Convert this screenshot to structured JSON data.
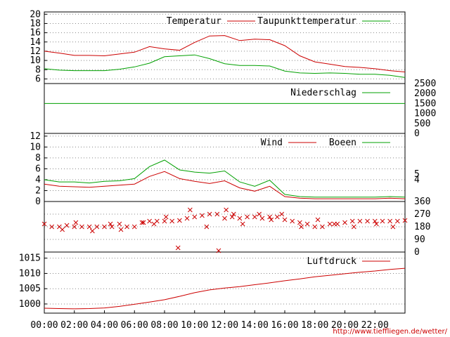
{
  "source_url": "http://www.tiefflie­gen.de/wetter/",
  "colors": {
    "red": "#cc0000",
    "green": "#00a000",
    "grid": "#888888",
    "axis": "#000000"
  },
  "chart_data": [
    {
      "type": "line",
      "id": "temp",
      "xlim": [
        0,
        24
      ],
      "ylim": [
        5,
        20.5
      ],
      "yticks": [
        6,
        8,
        10,
        12,
        14,
        16,
        18,
        20
      ],
      "xticks_labels": [
        "00:00",
        "02:00",
        "04:00",
        "06:00",
        "08:00",
        "10:00",
        "12:00",
        "14:00",
        "16:00",
        "18:00",
        "20:00",
        "22:00"
      ],
      "series": [
        {
          "name": "Temperatur",
          "color": "#cc0000",
          "x": [
            0,
            1,
            2,
            3,
            4,
            5,
            6,
            7,
            8,
            9,
            10,
            11,
            12,
            13,
            14,
            15,
            16,
            17,
            18,
            19,
            20,
            21,
            22,
            23,
            24
          ],
          "values": [
            12,
            11.6,
            11.1,
            11.1,
            11,
            11.4,
            11.8,
            13,
            12.5,
            12.2,
            13.9,
            15.3,
            15.4,
            14.3,
            14.6,
            14.5,
            13.2,
            11,
            9.7,
            9.2,
            8.7,
            8.5,
            8.2,
            7.8,
            7.5
          ]
        },
        {
          "name": "Taupunkttemperatur",
          "color": "#00a000",
          "x": [
            0,
            1,
            2,
            3,
            4,
            5,
            6,
            7,
            8,
            9,
            10,
            11,
            12,
            13,
            14,
            15,
            16,
            17,
            18,
            19,
            20,
            21,
            22,
            23,
            24
          ],
          "values": [
            8.2,
            7.9,
            7.8,
            7.8,
            7.8,
            8.1,
            8.6,
            9.4,
            10.8,
            11,
            11.2,
            10.4,
            9.3,
            8.9,
            8.9,
            8.8,
            7.7,
            7.3,
            7.2,
            7.3,
            7.2,
            7,
            7,
            6.8,
            6.3
          ]
        }
      ]
    },
    {
      "type": "line",
      "id": "rain",
      "xlim": [
        0,
        24
      ],
      "ylim": [
        0,
        2500
      ],
      "yticks": [
        0,
        500,
        1000,
        1500,
        2000,
        2500
      ],
      "series": [
        {
          "name": "Niederschlag",
          "color": "#00a000",
          "x": [
            0,
            24
          ],
          "values": [
            1500,
            1500
          ]
        }
      ]
    },
    {
      "type": "line",
      "id": "wind",
      "xlim": [
        0,
        24
      ],
      "ylim": [
        0,
        12.5
      ],
      "yticks": [
        0,
        2,
        4,
        6,
        8,
        10,
        12
      ],
      "y2ticks": [
        4,
        5
      ],
      "series": [
        {
          "name": "Wind",
          "color": "#cc0000",
          "x": [
            0,
            1,
            2,
            3,
            4,
            5,
            6,
            7,
            8,
            9,
            10,
            11,
            12,
            13,
            14,
            15,
            16,
            17,
            18,
            19,
            20,
            21,
            22,
            23,
            24
          ],
          "values": [
            3.2,
            2.8,
            2.7,
            2.6,
            2.8,
            3,
            3.2,
            4.6,
            5.5,
            4.2,
            3.7,
            3.3,
            3.8,
            2.5,
            1.9,
            2.8,
            0.9,
            0.6,
            0.5,
            0.5,
            0.5,
            0.5,
            0.5,
            0.6,
            0.5
          ]
        },
        {
          "name": "Boeen",
          "color": "#00a000",
          "x": [
            0,
            1,
            2,
            3,
            4,
            5,
            6,
            7,
            8,
            9,
            10,
            11,
            12,
            13,
            14,
            15,
            16,
            17,
            18,
            19,
            20,
            21,
            22,
            23,
            24
          ],
          "values": [
            4,
            3.6,
            3.6,
            3.4,
            3.7,
            3.8,
            4.2,
            6.4,
            7.6,
            5.8,
            5.4,
            5.2,
            5.6,
            3.6,
            2.8,
            3.9,
            1.3,
            0.9,
            0.8,
            0.8,
            0.8,
            0.8,
            0.8,
            0.9,
            0.8
          ]
        }
      ]
    },
    {
      "type": "scatter",
      "id": "winddir",
      "xlim": [
        0,
        24
      ],
      "ylim": [
        0,
        360
      ],
      "yticks": [
        0,
        90,
        180,
        270,
        360
      ],
      "series": [
        {
          "name": "",
          "color": "#cc0000",
          "x": [
            0,
            0.5,
            1,
            1.5,
            2,
            2.5,
            3,
            3.5,
            4,
            4.5,
            5,
            5.5,
            6,
            6.5,
            7,
            7.5,
            8,
            8.5,
            9,
            9.5,
            10,
            10.5,
            11,
            11.5,
            12,
            12.5,
            13,
            13.5,
            14,
            14.5,
            15,
            15.5,
            16,
            16.5,
            17,
            17.5,
            18,
            18.5,
            19,
            19.5,
            20,
            20.5,
            21,
            21.5,
            22,
            22.5,
            23,
            23.5,
            24
          ],
          "values": [
            200,
            180,
            180,
            190,
            180,
            180,
            180,
            180,
            180,
            180,
            200,
            180,
            180,
            210,
            220,
            220,
            220,
            220,
            225,
            240,
            250,
            260,
            270,
            270,
            240,
            250,
            240,
            250,
            250,
            240,
            250,
            250,
            230,
            220,
            210,
            200,
            180,
            180,
            200,
            200,
            210,
            220,
            220,
            220,
            220,
            220,
            220,
            220,
            225
          ]
        },
        {
          "name": "",
          "color": "#cc0000",
          "x": [
            1.2,
            2.1,
            3.2,
            4.4,
            5.1,
            6.6,
            7.3,
            8.1,
            8.9,
            9.7,
            10.8,
            11.6,
            12.1,
            12.6,
            13.2,
            14.3,
            15.1,
            15.8,
            17.1,
            18.2,
            19.3,
            20.6,
            22.1,
            23.2
          ],
          "values": [
            160,
            210,
            150,
            200,
            160,
            210,
            200,
            250,
            30,
            300,
            180,
            10,
            300,
            270,
            200,
            270,
            230,
            270,
            180,
            230,
            200,
            180,
            200,
            180
          ]
        }
      ]
    },
    {
      "type": "line",
      "id": "pressure",
      "xlim": [
        0,
        24
      ],
      "ylim": [
        997,
        1017
      ],
      "yticks": [
        1000,
        1005,
        1010,
        1015
      ],
      "series": [
        {
          "name": "Luftdruck",
          "color": "#cc0000",
          "x": [
            0,
            1,
            2,
            3,
            4,
            5,
            6,
            7,
            8,
            9,
            10,
            11,
            12,
            13,
            14,
            15,
            16,
            17,
            18,
            19,
            20,
            21,
            22,
            23,
            24
          ],
          "values": [
            998.6,
            998.5,
            998.4,
            998.5,
            998.7,
            999.2,
            999.9,
            1000.6,
            1001.4,
            1002.5,
            1003.7,
            1004.6,
            1005.2,
            1005.7,
            1006.3,
            1006.9,
            1007.6,
            1008.2,
            1008.9,
            1009.4,
            1009.9,
            1010.4,
            1010.8,
            1011.3,
            1011.7
          ]
        }
      ]
    }
  ]
}
